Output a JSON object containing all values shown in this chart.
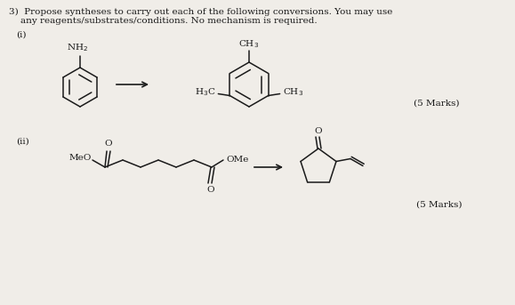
{
  "background_color": "#f0ede8",
  "text_color": "#1a1a1a",
  "line_color": "#1a1a1a",
  "font_size_main": 7.5,
  "font_size_chem": 7.5,
  "title_line1": "3)  Propose syntheses to carry out each of the following conversions. You may use",
  "title_line2": "    any reagents/substrates/conditions. No mechanism is required.",
  "label_i": "(i)",
  "label_ii": "(ii)",
  "marks1": "(5 Marks)",
  "marks2": "(5 Marks)"
}
